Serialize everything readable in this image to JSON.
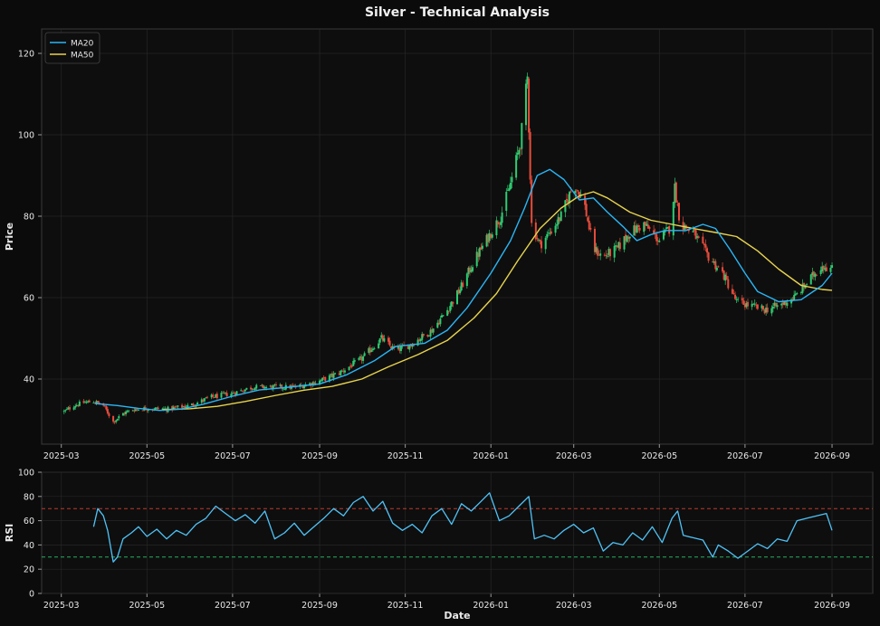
{
  "figure_title": "Silver - Technical Analysis",
  "colors": {
    "background": "#0b0b0b",
    "axes_face": "#0e0e0e",
    "grid": "#262626",
    "spine": "#3a3a3a",
    "text": "#e8e8e8",
    "up_candle": "#2ecc71",
    "down_candle": "#e74c3c",
    "ma20": "#29b6f6",
    "ma50": "#e8d44d",
    "rsi": "#4fc3f7",
    "overbought_line": "#c0392b",
    "oversold_line": "#27ae60"
  },
  "chart_data": [
    {
      "type": "line",
      "subtype": "candlestick_with_moving_averages",
      "title": "Silver - Technical Analysis",
      "xlabel": "",
      "ylabel": "Price",
      "x_type": "date",
      "xlim": [
        "2025-02-15",
        "2026-09-30"
      ],
      "ylim": [
        24,
        126
      ],
      "xticks": [
        "2025-03",
        "2025-05",
        "2025-07",
        "2025-09",
        "2025-11",
        "2026-01",
        "2026-03",
        "2026-05",
        "2026-07",
        "2026-09"
      ],
      "yticks": [
        40,
        60,
        80,
        100,
        120
      ],
      "grid": true,
      "legend": {
        "position": "top-left",
        "entries": [
          "MA20",
          "MA50"
        ]
      },
      "candle_anchors": [
        [
          "2025-03-03",
          32
        ],
        [
          "2025-03-10",
          33.5
        ],
        [
          "2025-03-17",
          34.2
        ],
        [
          "2025-03-24",
          34.5
        ],
        [
          "2025-03-31",
          33.5
        ],
        [
          "2025-04-07",
          29.5
        ],
        [
          "2025-04-14",
          31.5
        ],
        [
          "2025-04-21",
          32.5
        ],
        [
          "2025-05-01",
          32.8
        ],
        [
          "2025-05-15",
          32.6
        ],
        [
          "2025-06-01",
          33.5
        ],
        [
          "2025-06-15",
          35.5
        ],
        [
          "2025-07-01",
          36.5
        ],
        [
          "2025-07-15",
          38
        ],
        [
          "2025-08-01",
          38
        ],
        [
          "2025-08-15",
          38
        ],
        [
          "2025-09-01",
          39.5
        ],
        [
          "2025-09-15",
          41.5
        ],
        [
          "2025-10-01",
          45
        ],
        [
          "2025-10-15",
          50
        ],
        [
          "2025-10-25",
          47
        ],
        [
          "2025-11-05",
          48.5
        ],
        [
          "2025-11-20",
          52
        ],
        [
          "2025-12-01",
          57
        ],
        [
          "2025-12-10",
          62
        ],
        [
          "2025-12-20",
          69
        ],
        [
          "2026-01-01",
          76
        ],
        [
          "2026-01-08",
          80
        ],
        [
          "2026-01-15",
          88
        ],
        [
          "2026-01-22",
          98
        ],
        [
          "2026-01-27",
          114
        ],
        [
          "2026-01-30",
          78
        ],
        [
          "2026-02-05",
          73
        ],
        [
          "2026-02-12",
          76
        ],
        [
          "2026-02-20",
          80
        ],
        [
          "2026-03-01",
          88
        ],
        [
          "2026-03-08",
          84
        ],
        [
          "2026-03-15",
          72
        ],
        [
          "2026-03-22",
          70
        ],
        [
          "2026-04-01",
          72
        ],
        [
          "2026-04-10",
          76
        ],
        [
          "2026-04-20",
          78
        ],
        [
          "2026-05-01",
          74
        ],
        [
          "2026-05-08",
          77
        ],
        [
          "2026-05-12",
          87
        ],
        [
          "2026-05-16",
          78
        ],
        [
          "2026-05-25",
          76
        ],
        [
          "2026-06-05",
          70
        ],
        [
          "2026-06-15",
          66
        ],
        [
          "2026-06-25",
          59
        ],
        [
          "2026-07-05",
          58
        ],
        [
          "2026-07-15",
          57
        ],
        [
          "2026-07-25",
          58
        ],
        [
          "2026-08-05",
          60
        ],
        [
          "2026-08-15",
          64
        ],
        [
          "2026-08-25",
          68
        ],
        [
          "2026-09-01",
          67
        ]
      ],
      "series": [
        {
          "name": "MA20",
          "points": [
            [
              "2025-03-25",
              34
            ],
            [
              "2025-04-10",
              33.5
            ],
            [
              "2025-04-25",
              32.8
            ],
            [
              "2025-05-10",
              32.3
            ],
            [
              "2025-05-25",
              32.6
            ],
            [
              "2025-06-10",
              33.8
            ],
            [
              "2025-07-01",
              35.8
            ],
            [
              "2025-07-20",
              37.3
            ],
            [
              "2025-08-10",
              38.0
            ],
            [
              "2025-09-01",
              38.8
            ],
            [
              "2025-09-20",
              41.0
            ],
            [
              "2025-10-10",
              44.5
            ],
            [
              "2025-10-25",
              48.0
            ],
            [
              "2025-11-15",
              48.8
            ],
            [
              "2025-12-01",
              52.0
            ],
            [
              "2025-12-15",
              57.5
            ],
            [
              "2026-01-01",
              66
            ],
            [
              "2026-01-15",
              74
            ],
            [
              "2026-01-25",
              82
            ],
            [
              "2026-02-03",
              90
            ],
            [
              "2026-02-12",
              91.5
            ],
            [
              "2026-02-22",
              89
            ],
            [
              "2026-03-05",
              84
            ],
            [
              "2026-03-15",
              84.5
            ],
            [
              "2026-03-25",
              81
            ],
            [
              "2026-04-05",
              77.5
            ],
            [
              "2026-04-15",
              74
            ],
            [
              "2026-04-25",
              75.5
            ],
            [
              "2026-05-05",
              76.5
            ],
            [
              "2026-05-20",
              76.5
            ],
            [
              "2026-06-01",
              78
            ],
            [
              "2026-06-10",
              77
            ],
            [
              "2026-06-20",
              72
            ],
            [
              "2026-07-01",
              66
            ],
            [
              "2026-07-10",
              61.5
            ],
            [
              "2026-07-25",
              59
            ],
            [
              "2026-08-10",
              59.5
            ],
            [
              "2026-08-25",
              63
            ],
            [
              "2026-09-01",
              66
            ]
          ]
        },
        {
          "name": "MA50",
          "points": [
            [
              "2025-05-12",
              32.5
            ],
            [
              "2025-06-01",
              32.7
            ],
            [
              "2025-06-20",
              33.3
            ],
            [
              "2025-07-10",
              34.5
            ],
            [
              "2025-08-01",
              36.0
            ],
            [
              "2025-08-20",
              37.2
            ],
            [
              "2025-09-10",
              38.2
            ],
            [
              "2025-10-01",
              40.0
            ],
            [
              "2025-10-20",
              43.0
            ],
            [
              "2025-11-10",
              46.0
            ],
            [
              "2025-12-01",
              49.5
            ],
            [
              "2025-12-20",
              55.0
            ],
            [
              "2026-01-05",
              61
            ],
            [
              "2026-01-20",
              69
            ],
            [
              "2026-02-05",
              77
            ],
            [
              "2026-02-20",
              82
            ],
            [
              "2026-03-05",
              85
            ],
            [
              "2026-03-15",
              86
            ],
            [
              "2026-03-25",
              84.5
            ],
            [
              "2026-04-10",
              81
            ],
            [
              "2026-04-25",
              79
            ],
            [
              "2026-05-10",
              78
            ],
            [
              "2026-05-25",
              77
            ],
            [
              "2026-06-10",
              76
            ],
            [
              "2026-06-25",
              75
            ],
            [
              "2026-07-10",
              71.5
            ],
            [
              "2026-07-25",
              67
            ],
            [
              "2026-08-10",
              63
            ],
            [
              "2026-08-25",
              62
            ],
            [
              "2026-09-01",
              61.8
            ]
          ]
        }
      ]
    },
    {
      "type": "line",
      "title": "",
      "xlabel": "Date",
      "ylabel": "RSI",
      "x_type": "date",
      "xlim": [
        "2025-02-15",
        "2026-09-30"
      ],
      "ylim": [
        0,
        100
      ],
      "xticks": [
        "2025-03",
        "2025-05",
        "2025-07",
        "2025-09",
        "2025-11",
        "2026-01",
        "2026-03",
        "2026-05",
        "2026-07",
        "2026-09"
      ],
      "yticks": [
        0,
        20,
        40,
        60,
        80,
        100
      ],
      "grid": true,
      "reference_lines": [
        70,
        30
      ],
      "series": [
        {
          "name": "RSI",
          "points": [
            [
              "2025-03-24",
              55
            ],
            [
              "2025-03-27",
              70
            ],
            [
              "2025-03-31",
              64
            ],
            [
              "2025-04-03",
              52
            ],
            [
              "2025-04-07",
              26
            ],
            [
              "2025-04-10",
              30
            ],
            [
              "2025-04-14",
              45
            ],
            [
              "2025-04-20",
              50
            ],
            [
              "2025-04-25",
              55
            ],
            [
              "2025-05-01",
              47
            ],
            [
              "2025-05-08",
              53
            ],
            [
              "2025-05-15",
              45
            ],
            [
              "2025-05-22",
              52
            ],
            [
              "2025-05-29",
              48
            ],
            [
              "2025-06-05",
              57
            ],
            [
              "2025-06-12",
              62
            ],
            [
              "2025-06-19",
              72
            ],
            [
              "2025-06-26",
              66
            ],
            [
              "2025-07-03",
              60
            ],
            [
              "2025-07-10",
              65
            ],
            [
              "2025-07-17",
              58
            ],
            [
              "2025-07-24",
              68
            ],
            [
              "2025-07-31",
              45
            ],
            [
              "2025-08-07",
              50
            ],
            [
              "2025-08-14",
              58
            ],
            [
              "2025-08-21",
              48
            ],
            [
              "2025-08-28",
              55
            ],
            [
              "2025-09-04",
              62
            ],
            [
              "2025-09-11",
              70
            ],
            [
              "2025-09-18",
              64
            ],
            [
              "2025-09-25",
              75
            ],
            [
              "2025-10-02",
              80
            ],
            [
              "2025-10-09",
              68
            ],
            [
              "2025-10-16",
              76
            ],
            [
              "2025-10-23",
              58
            ],
            [
              "2025-10-30",
              52
            ],
            [
              "2025-11-06",
              57
            ],
            [
              "2025-11-13",
              50
            ],
            [
              "2025-11-20",
              64
            ],
            [
              "2025-11-27",
              70
            ],
            [
              "2025-12-04",
              57
            ],
            [
              "2025-12-11",
              74
            ],
            [
              "2025-12-18",
              68
            ],
            [
              "2025-12-25",
              76
            ],
            [
              "2025-12-31",
              83
            ],
            [
              "2026-01-07",
              60
            ],
            [
              "2026-01-14",
              64
            ],
            [
              "2026-01-21",
              72
            ],
            [
              "2026-01-28",
              80
            ],
            [
              "2026-02-01",
              45
            ],
            [
              "2026-02-08",
              48
            ],
            [
              "2026-02-15",
              45
            ],
            [
              "2026-02-22",
              52
            ],
            [
              "2026-03-01",
              57
            ],
            [
              "2026-03-08",
              50
            ],
            [
              "2026-03-15",
              54
            ],
            [
              "2026-03-22",
              35
            ],
            [
              "2026-03-29",
              42
            ],
            [
              "2026-04-05",
              40
            ],
            [
              "2026-04-12",
              50
            ],
            [
              "2026-04-19",
              44
            ],
            [
              "2026-04-26",
              55
            ],
            [
              "2026-05-03",
              42
            ],
            [
              "2026-05-10",
              62
            ],
            [
              "2026-05-14",
              68
            ],
            [
              "2026-05-18",
              48
            ],
            [
              "2026-05-25",
              46
            ],
            [
              "2026-06-01",
              44
            ],
            [
              "2026-06-08",
              30
            ],
            [
              "2026-06-12",
              40
            ],
            [
              "2026-06-19",
              35
            ],
            [
              "2026-06-26",
              29
            ],
            [
              "2026-07-03",
              35
            ],
            [
              "2026-07-10",
              41
            ],
            [
              "2026-07-17",
              37
            ],
            [
              "2026-07-24",
              45
            ],
            [
              "2026-07-31",
              43
            ],
            [
              "2026-08-07",
              60
            ],
            [
              "2026-08-14",
              62
            ],
            [
              "2026-08-21",
              64
            ],
            [
              "2026-08-28",
              66
            ],
            [
              "2026-09-01",
              52
            ]
          ]
        }
      ]
    }
  ]
}
